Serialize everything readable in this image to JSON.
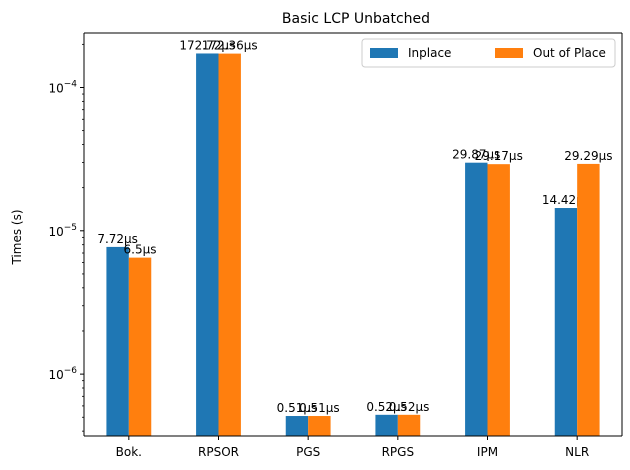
{
  "chart_data": {
    "type": "bar",
    "title": "Basic LCP Unbatched",
    "xlabel": "",
    "ylabel": "Times (s)",
    "yscale": "log",
    "ylim": [
      3.7e-07,
      0.00024
    ],
    "categories": [
      "Bok.",
      "RPSOR",
      "PGS",
      "RPGS",
      "IPM",
      "NLR"
    ],
    "series": [
      {
        "name": "Inplace",
        "color": "#1f77b4",
        "values": [
          7.72e-06,
          0.00017272,
          5.1e-07,
          5.2e-07,
          2.987e-05,
          1.442e-05
        ],
        "labels": [
          "7.72μs",
          "172.72μs",
          "0.51μs",
          "0.52μs",
          "29.87μs",
          "14.42μs"
        ]
      },
      {
        "name": "Out of Place",
        "color": "#ff7f0e",
        "values": [
          6.5e-06,
          0.00017236,
          5.1e-07,
          5.2e-07,
          2.917e-05,
          2.929e-05
        ],
        "labels": [
          "6.5μs",
          "172.36μs",
          "0.51μs",
          "0.52μs",
          "29.17μs",
          "29.29μs"
        ]
      }
    ],
    "yticks": [
      {
        "value": 1e-06,
        "base": "10",
        "exp": "−6"
      },
      {
        "value": 1e-05,
        "base": "10",
        "exp": "−5"
      },
      {
        "value": 0.0001,
        "base": "10",
        "exp": "−4"
      }
    ],
    "legend": {
      "position": "top-right",
      "ncol": 2
    },
    "grid": false
  }
}
